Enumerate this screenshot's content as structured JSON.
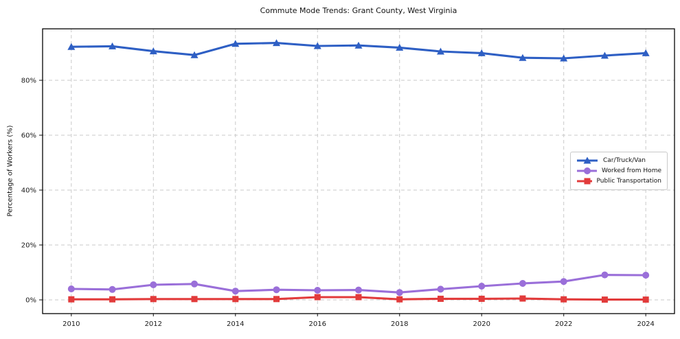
{
  "window": {
    "title": "Commute Mode Trends: Grant County, West Virginia"
  },
  "chart_data": {
    "type": "line",
    "title": "Commute Mode Trends: Grant County, West Virginia",
    "xlabel": "",
    "ylabel": "Percentage of Workers (%)",
    "x": [
      2010,
      2011,
      2012,
      2013,
      2014,
      2015,
      2016,
      2017,
      2018,
      2019,
      2020,
      2021,
      2022,
      2023,
      2024
    ],
    "series": [
      {
        "name": "Car/Truck/Van",
        "color": "#2e5fc4",
        "marker": "triangle",
        "values": [
          92.2,
          92.4,
          90.6,
          89.2,
          93.3,
          93.6,
          92.5,
          92.7,
          91.9,
          90.5,
          89.9,
          88.2,
          88.0,
          89.0,
          89.9
        ]
      },
      {
        "name": "Worked from Home",
        "color": "#9a6fd9",
        "marker": "circle",
        "values": [
          4.0,
          3.8,
          5.5,
          5.8,
          3.2,
          3.7,
          3.5,
          3.6,
          2.7,
          3.9,
          5.0,
          6.0,
          6.7,
          9.1,
          9.0
        ]
      },
      {
        "name": "Public Transportation",
        "color": "#e23b3b",
        "marker": "square",
        "values": [
          0.2,
          0.2,
          0.3,
          0.3,
          0.3,
          0.3,
          1.0,
          1.0,
          0.2,
          0.4,
          0.4,
          0.5,
          0.2,
          0.1,
          0.1
        ]
      }
    ],
    "xticks": [
      2010,
      2012,
      2014,
      2016,
      2018,
      2020,
      2022,
      2024
    ],
    "yticks": [
      0,
      20,
      40,
      60,
      80
    ],
    "ytick_suffix": "%",
    "xlim": [
      2009.3,
      2024.7
    ],
    "ylim": [
      -5,
      98.75
    ],
    "grid": "dashed",
    "legend_position": "center-right"
  }
}
